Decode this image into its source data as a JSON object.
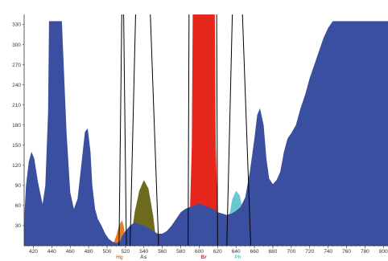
{
  "chart_data": {
    "type": "area",
    "title": "",
    "xlabel": "",
    "ylabel": "",
    "xlim": [
      410,
      805
    ],
    "ylim": [
      0,
      345
    ],
    "grid": false,
    "legend": "none",
    "x_ticks": [
      420,
      440,
      460,
      480,
      500,
      520,
      540,
      560,
      580,
      600,
      620,
      640,
      660,
      680,
      700,
      720,
      740,
      760,
      780,
      800
    ],
    "y_ticks": [
      30,
      60,
      90,
      120,
      150,
      180,
      210,
      240,
      270,
      300,
      330
    ],
    "series": [
      {
        "color": "#3b4fa0",
        "x": [
          410,
          412,
          415,
          418,
          421,
          425,
          430,
          433,
          436,
          437,
          451,
          452,
          456,
          460,
          464,
          468,
          472,
          476,
          479,
          482,
          484,
          487,
          490,
          494,
          498,
          502,
          506,
          510,
          514,
          516,
          520,
          525,
          530,
          535,
          540,
          545,
          550,
          555,
          560,
          565,
          570,
          575,
          580,
          585,
          590,
          595,
          600,
          605,
          610,
          615,
          620,
          625,
          630,
          635,
          640,
          645,
          650,
          655,
          660,
          663,
          666,
          670,
          673,
          676,
          680,
          684,
          688,
          692,
          696,
          700,
          705,
          710,
          715,
          720,
          725,
          730,
          735,
          740,
          745,
          746,
          805
        ],
        "values": [
          38,
          90,
          125,
          140,
          130,
          95,
          62,
          90,
          200,
          335,
          335,
          300,
          170,
          80,
          55,
          70,
          120,
          170,
          175,
          140,
          90,
          55,
          40,
          30,
          18,
          10,
          6,
          4,
          6,
          14,
          22,
          30,
          35,
          32,
          30,
          26,
          22,
          18,
          18,
          22,
          30,
          40,
          50,
          55,
          58,
          60,
          63,
          60,
          58,
          55,
          50,
          48,
          46,
          48,
          52,
          58,
          72,
          110,
          160,
          195,
          205,
          180,
          130,
          100,
          92,
          98,
          110,
          140,
          160,
          168,
          180,
          205,
          225,
          250,
          270,
          290,
          310,
          325,
          335,
          335,
          335
        ]
      }
    ],
    "bands": [
      {
        "label": "Hg",
        "color": "#e87d23",
        "label_color": "#e87d23",
        "x": [
          506,
          510,
          513,
          516,
          518,
          520,
          521
        ],
        "values": [
          0,
          15,
          30,
          38,
          30,
          12,
          0
        ]
      },
      {
        "label": "As",
        "color": "#6d6a1f",
        "label_color": "#6d6a1f",
        "x": [
          525,
          530,
          535,
          540,
          545,
          550,
          554
        ],
        "values": [
          0,
          50,
          82,
          98,
          85,
          45,
          0
        ]
      },
      {
        "label": "Br",
        "color": "#e5271d",
        "label_color": "#e5271d",
        "x": [
          589,
          592,
          593,
          597,
          613,
          617,
          618,
          621
        ],
        "values": [
          0,
          150,
          350,
          350,
          350,
          350,
          150,
          0
        ]
      },
      {
        "label": "Ph",
        "color": "#6ac8cf",
        "label_color": "#6ac8cf",
        "x": [
          629,
          632,
          636,
          640,
          644,
          648,
          652,
          655
        ],
        "values": [
          0,
          40,
          70,
          82,
          75,
          50,
          18,
          0
        ]
      }
    ],
    "filter_lines": [
      [
        [
          513,
          0
        ],
        [
          516,
          350
        ]
      ],
      [
        [
          521,
          0
        ],
        [
          518,
          350
        ]
      ],
      [
        [
          525,
          0
        ],
        [
          531,
          350
        ]
      ],
      [
        [
          556,
          0
        ],
        [
          547,
          350
        ]
      ],
      [
        [
          588,
          0
        ],
        [
          589,
          350
        ]
      ],
      [
        [
          620,
          0
        ],
        [
          619,
          350
        ]
      ],
      [
        [
          630,
          0
        ],
        [
          636,
          350
        ]
      ],
      [
        [
          656,
          0
        ],
        [
          647,
          350
        ]
      ]
    ]
  }
}
